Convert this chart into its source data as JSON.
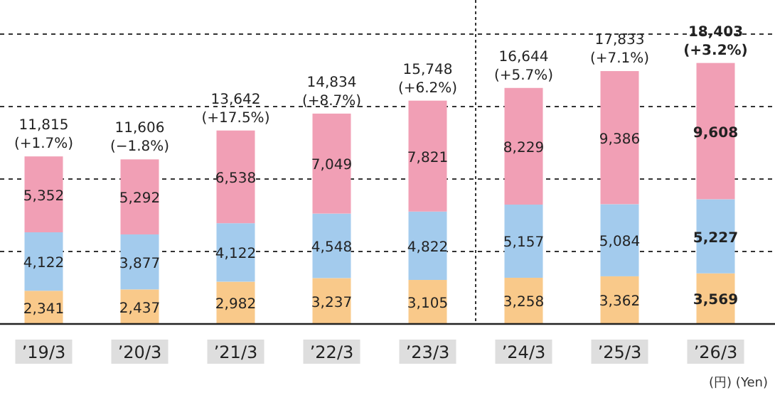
{
  "chart_data": {
    "type": "bar",
    "stacked": true,
    "categories": [
      "’19/3",
      "’20/3",
      "’21/3",
      "’22/3",
      "’23/3",
      "’24/3",
      "’25/3",
      "’26/3"
    ],
    "series": [
      {
        "color": "#f9c98a",
        "values": [
          2341,
          2437,
          2982,
          3237,
          3105,
          3258,
          3362,
          3569
        ],
        "value_labels": [
          "2,341",
          "2,437",
          "2,982",
          "3,237",
          "3,105",
          "3,258",
          "3,362",
          "3,569"
        ]
      },
      {
        "color": "#a3cbed",
        "values": [
          4122,
          3877,
          4122,
          4548,
          4822,
          5157,
          5084,
          5227
        ],
        "value_labels": [
          "4,122",
          "3,877",
          "4,122",
          "4,548",
          "4,822",
          "5,157",
          "5,084",
          "5,227"
        ]
      },
      {
        "color": "#f19fb5",
        "values": [
          5352,
          5292,
          6538,
          7049,
          7821,
          8229,
          9386,
          9608
        ],
        "value_labels": [
          "5,352",
          "5,292",
          "6,538",
          "7,049",
          "7,821",
          "8,229",
          "9,386",
          "9,608"
        ]
      }
    ],
    "totals": [
      "11,815 (+1.7%)",
      "11,606 (−1.8%)",
      "13,642 (+17.5%)",
      "14,834 (+8.7%)",
      "15,748 (+6.2%)",
      "16,644 (+5.7%)",
      "17,833 (+7.1%)",
      "18,403 (+3.2%)"
    ],
    "grid": "y",
    "tick_labels": "x",
    "annotations": [
      "(円) (Yen)"
    ]
  }
}
